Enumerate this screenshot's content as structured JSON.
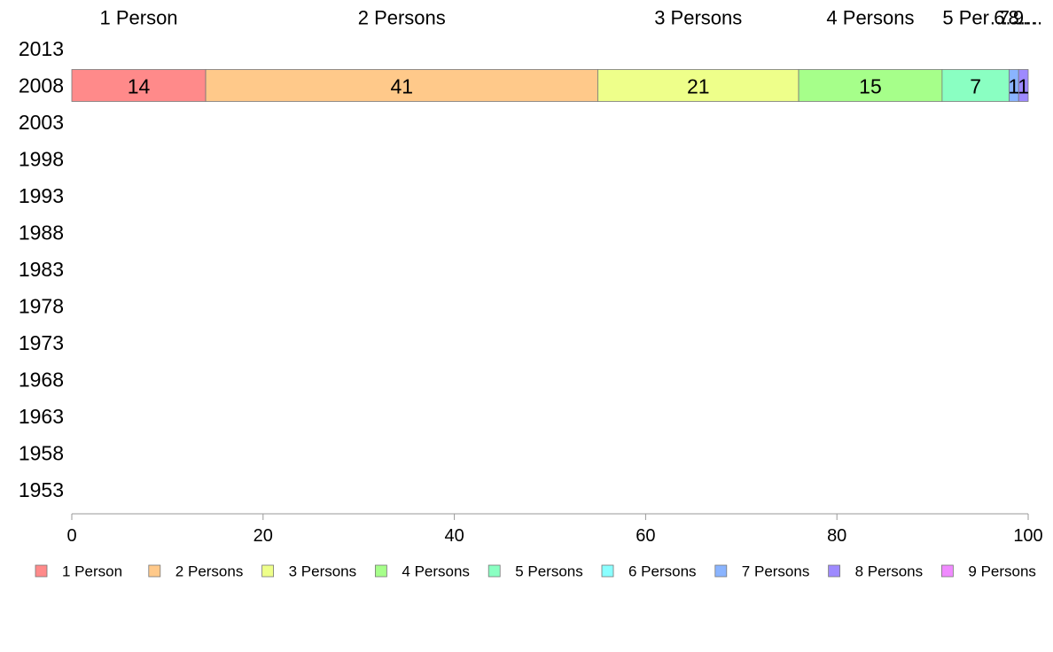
{
  "chart_data": {
    "type": "bar",
    "orientation": "horizontal",
    "stacked": true,
    "y_categories": [
      "2013",
      "2008",
      "2003",
      "1998",
      "1993",
      "1988",
      "1983",
      "1978",
      "1973",
      "1968",
      "1963",
      "1958",
      "1953"
    ],
    "series": [
      {
        "name": "1 Person",
        "color": "#ff8a8a",
        "values": [
          null,
          14,
          null,
          null,
          null,
          null,
          null,
          null,
          null,
          null,
          null,
          null,
          null
        ]
      },
      {
        "name": "2 Persons",
        "color": "#ffc98a",
        "values": [
          null,
          41,
          null,
          null,
          null,
          null,
          null,
          null,
          null,
          null,
          null,
          null,
          null
        ]
      },
      {
        "name": "3 Persons",
        "color": "#eeff8a",
        "values": [
          null,
          21,
          null,
          null,
          null,
          null,
          null,
          null,
          null,
          null,
          null,
          null,
          null
        ]
      },
      {
        "name": "4 Persons",
        "color": "#a6ff8a",
        "values": [
          null,
          15,
          null,
          null,
          null,
          null,
          null,
          null,
          null,
          null,
          null,
          null,
          null
        ]
      },
      {
        "name": "5 Persons",
        "color": "#8affc2",
        "values": [
          null,
          7,
          null,
          null,
          null,
          null,
          null,
          null,
          null,
          null,
          null,
          null,
          null
        ]
      },
      {
        "name": "6 Persons",
        "color": "#8affff",
        "values": [
          null,
          0,
          null,
          null,
          null,
          null,
          null,
          null,
          null,
          null,
          null,
          null,
          null
        ]
      },
      {
        "name": "7 Persons",
        "color": "#8ab4ff",
        "values": [
          null,
          1,
          null,
          null,
          null,
          null,
          null,
          null,
          null,
          null,
          null,
          null,
          null
        ]
      },
      {
        "name": "8 Persons",
        "color": "#9e8aff",
        "values": [
          null,
          1,
          null,
          null,
          null,
          null,
          null,
          null,
          null,
          null,
          null,
          null,
          null
        ]
      },
      {
        "name": "9 Persons",
        "color": "#f08aff",
        "values": [
          null,
          0,
          null,
          null,
          null,
          null,
          null,
          null,
          null,
          null,
          null,
          null,
          null
        ]
      }
    ],
    "top_labels": [
      "1 Person",
      "2 Persons",
      "3 Persons",
      "4 Persons",
      "5 Per…",
      "6…",
      "7…",
      "8…",
      "9…"
    ],
    "x_ticks": [
      0,
      20,
      40,
      60,
      80,
      100
    ],
    "xlim": [
      0,
      100
    ],
    "grid": false,
    "legend_position": "bottom"
  }
}
